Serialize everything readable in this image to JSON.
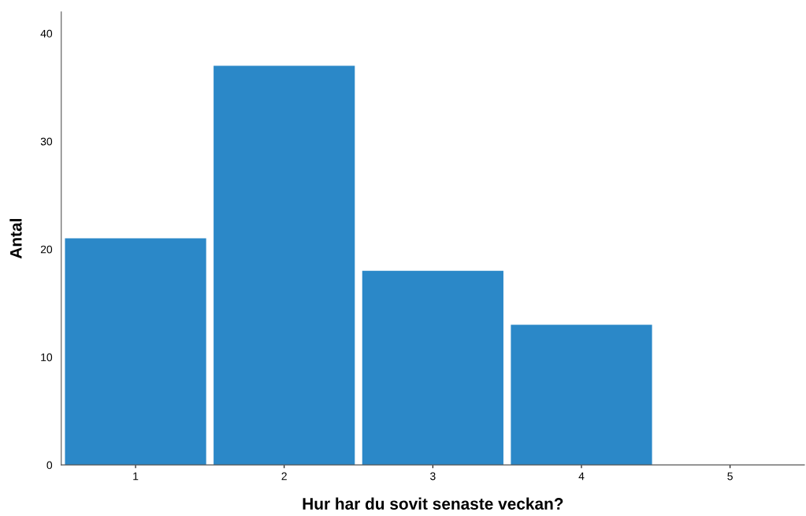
{
  "chart_data": {
    "type": "bar",
    "xlabel": "Hur har du sovit senaste veckan?",
    "ylabel": "Antal",
    "categories": [
      "1",
      "2",
      "3",
      "4",
      "5"
    ],
    "values": [
      21,
      37,
      18,
      13,
      0
    ],
    "color": "#2b88c8",
    "ylim": [
      0,
      42
    ],
    "yticks": [
      0,
      10,
      20,
      30,
      40
    ],
    "grid": false,
    "legend": false
  }
}
